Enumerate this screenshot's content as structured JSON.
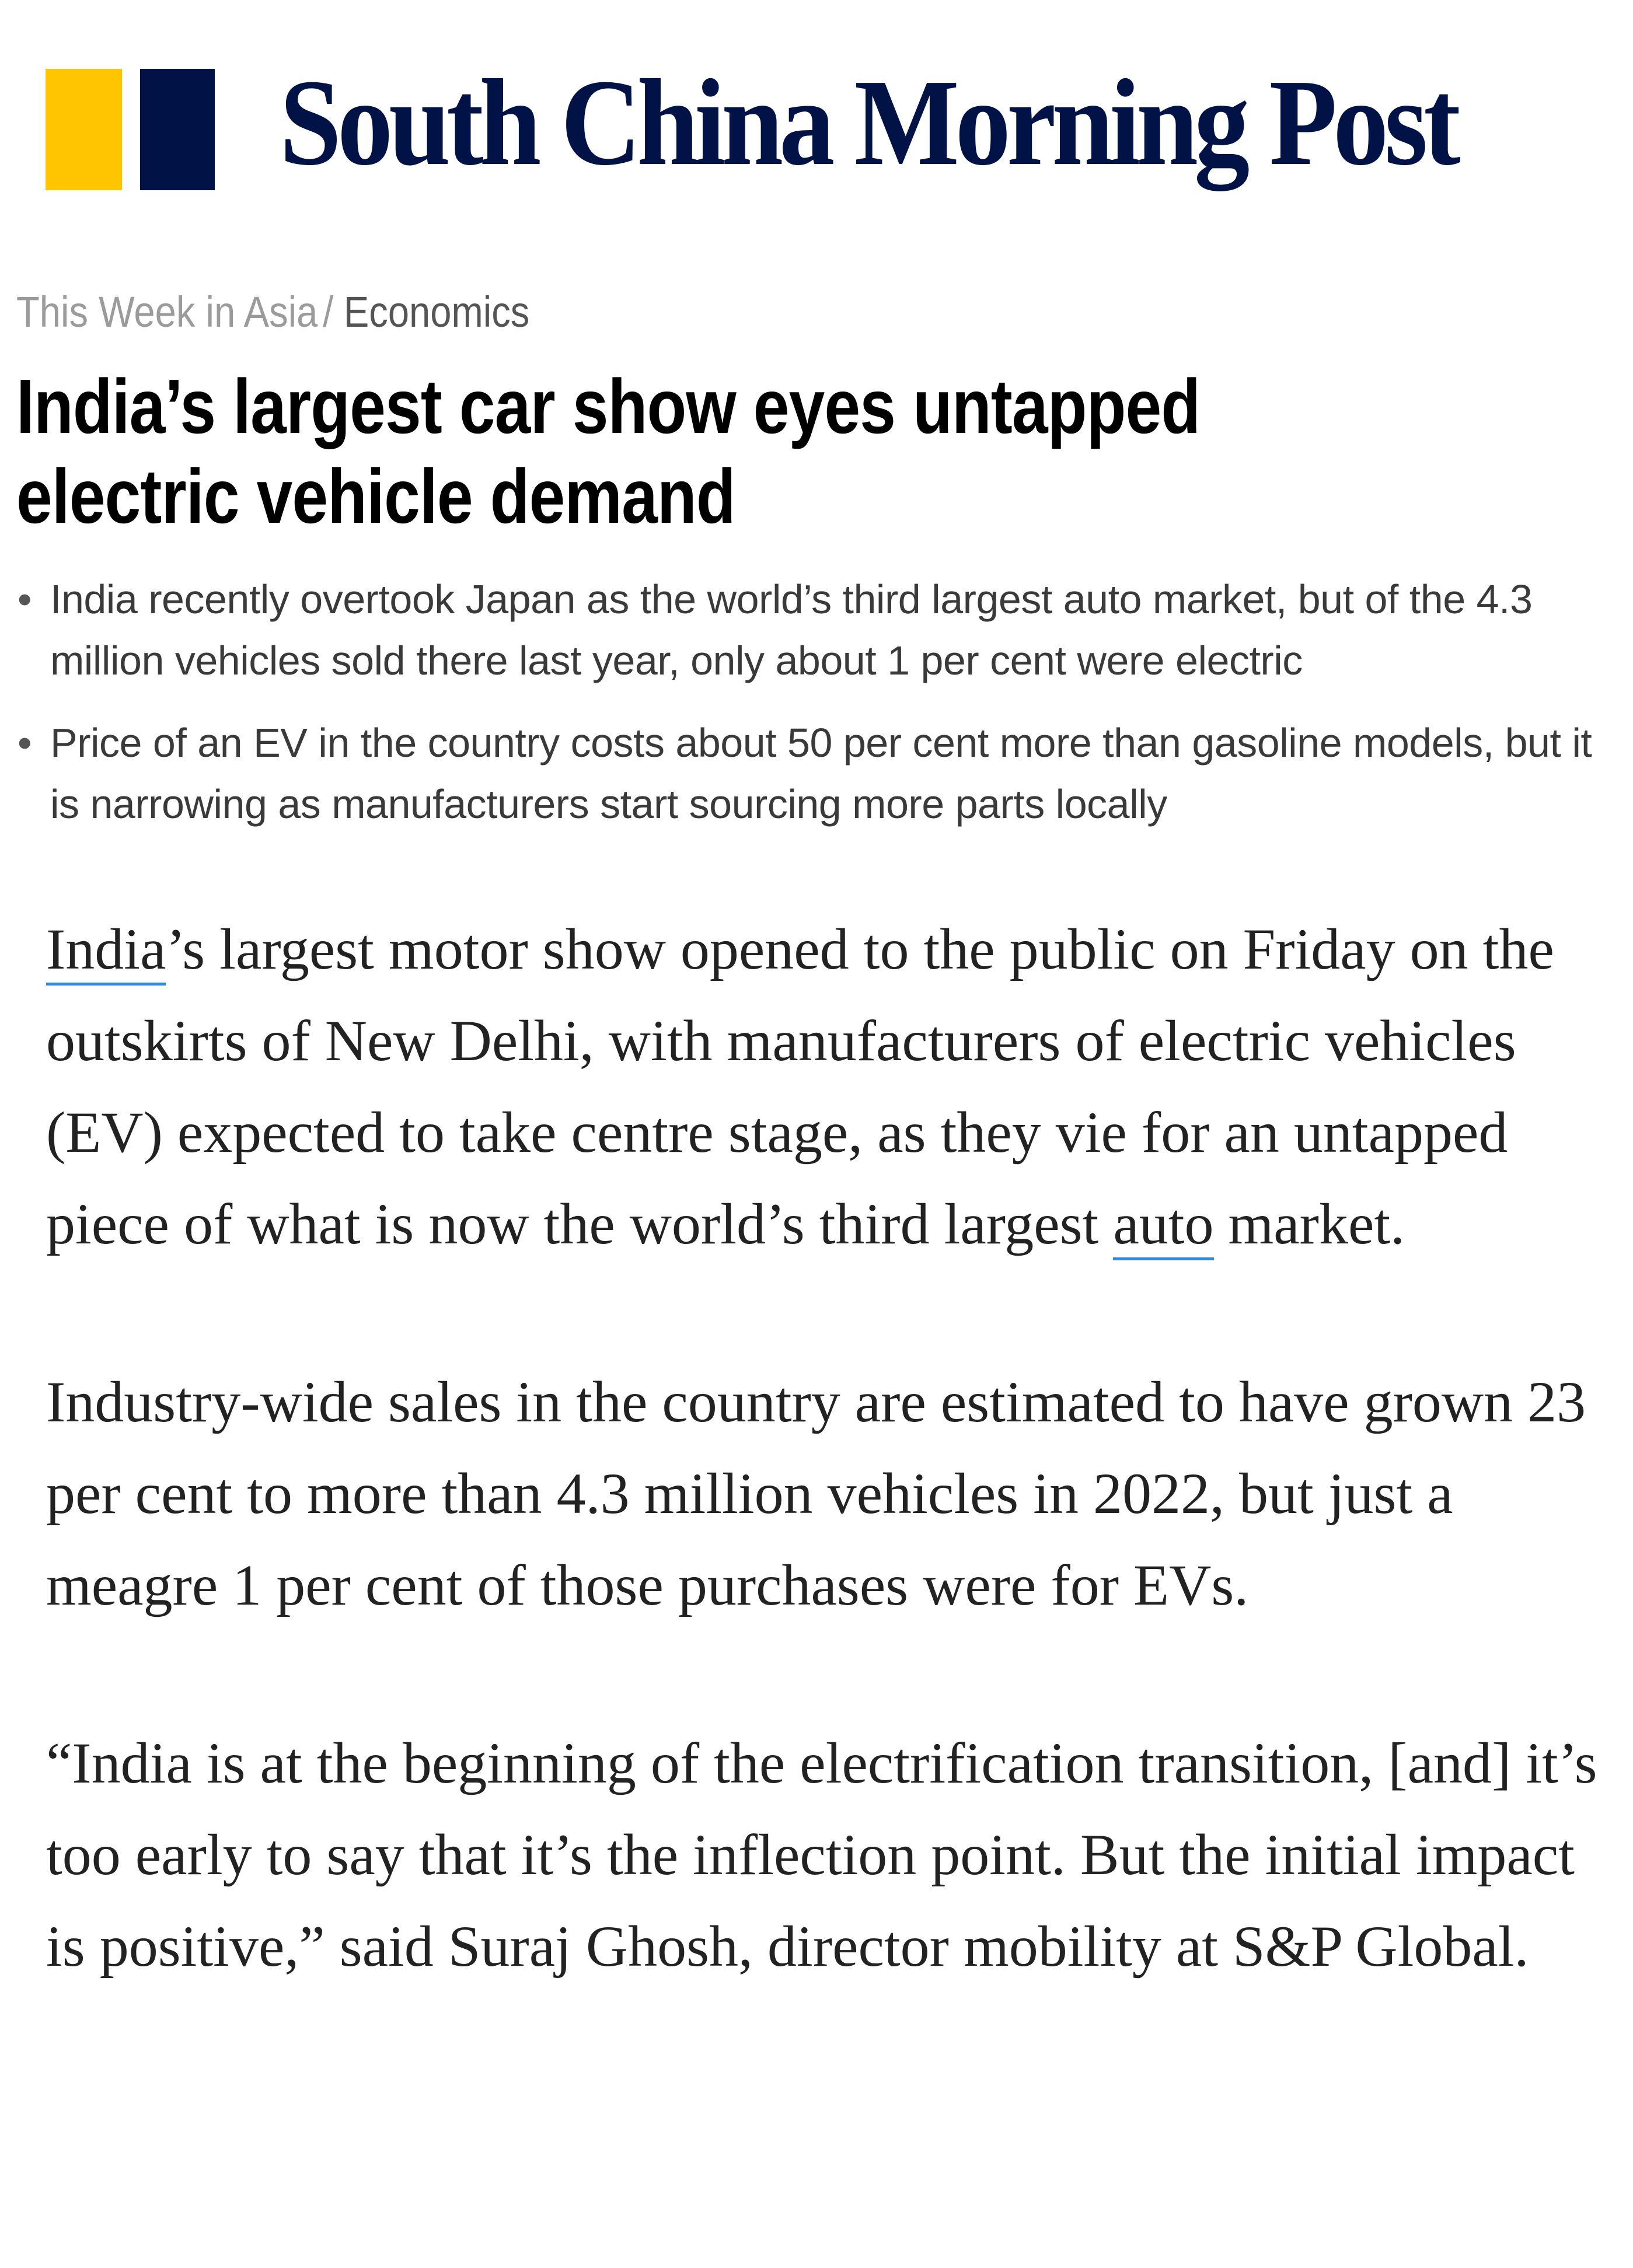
{
  "logo": {
    "text": "South China Morning Post",
    "colors": {
      "yellow": "#ffc600",
      "navy": "#001246"
    }
  },
  "breadcrumb": {
    "section": "This Week in Asia",
    "separator": "/",
    "subsection": "Economics"
  },
  "headline": "India’s largest car show eyes untapped electric vehicle demand",
  "bullets": [
    "India recently overtook Japan as the world’s third largest auto market, but of the 4.3 million vehicles sold there last year, only about 1 per cent were electric",
    "Price of an EV in the country costs about 50 per cent more than gasoline models, but it is narrowing as manufacturers start sourcing more parts locally"
  ],
  "article": {
    "p1": {
      "link1": "India",
      "part1": "’s largest motor show opened to the public on Friday on the outskirts of New Delhi, with manufacturers of electric vehicles (EV) expected to take centre stage, as they vie for an untapped piece of what is now the world’s third largest ",
      "link2": "auto",
      "part2": " market."
    },
    "p2": "Industry-wide sales in the country are estimated to have grown 23 per cent to more than 4.3 million vehicles in 2022, but just a meagre 1 per cent of those purchases were for EVs.",
    "p3": "“India is at the beginning of the electrification transition, [and] it’s too early to say that it’s the inflection point. But the initial impact is positive,” said Suraj Ghosh, director mobility at S&P Global."
  },
  "link_color": "#2a8ae6"
}
